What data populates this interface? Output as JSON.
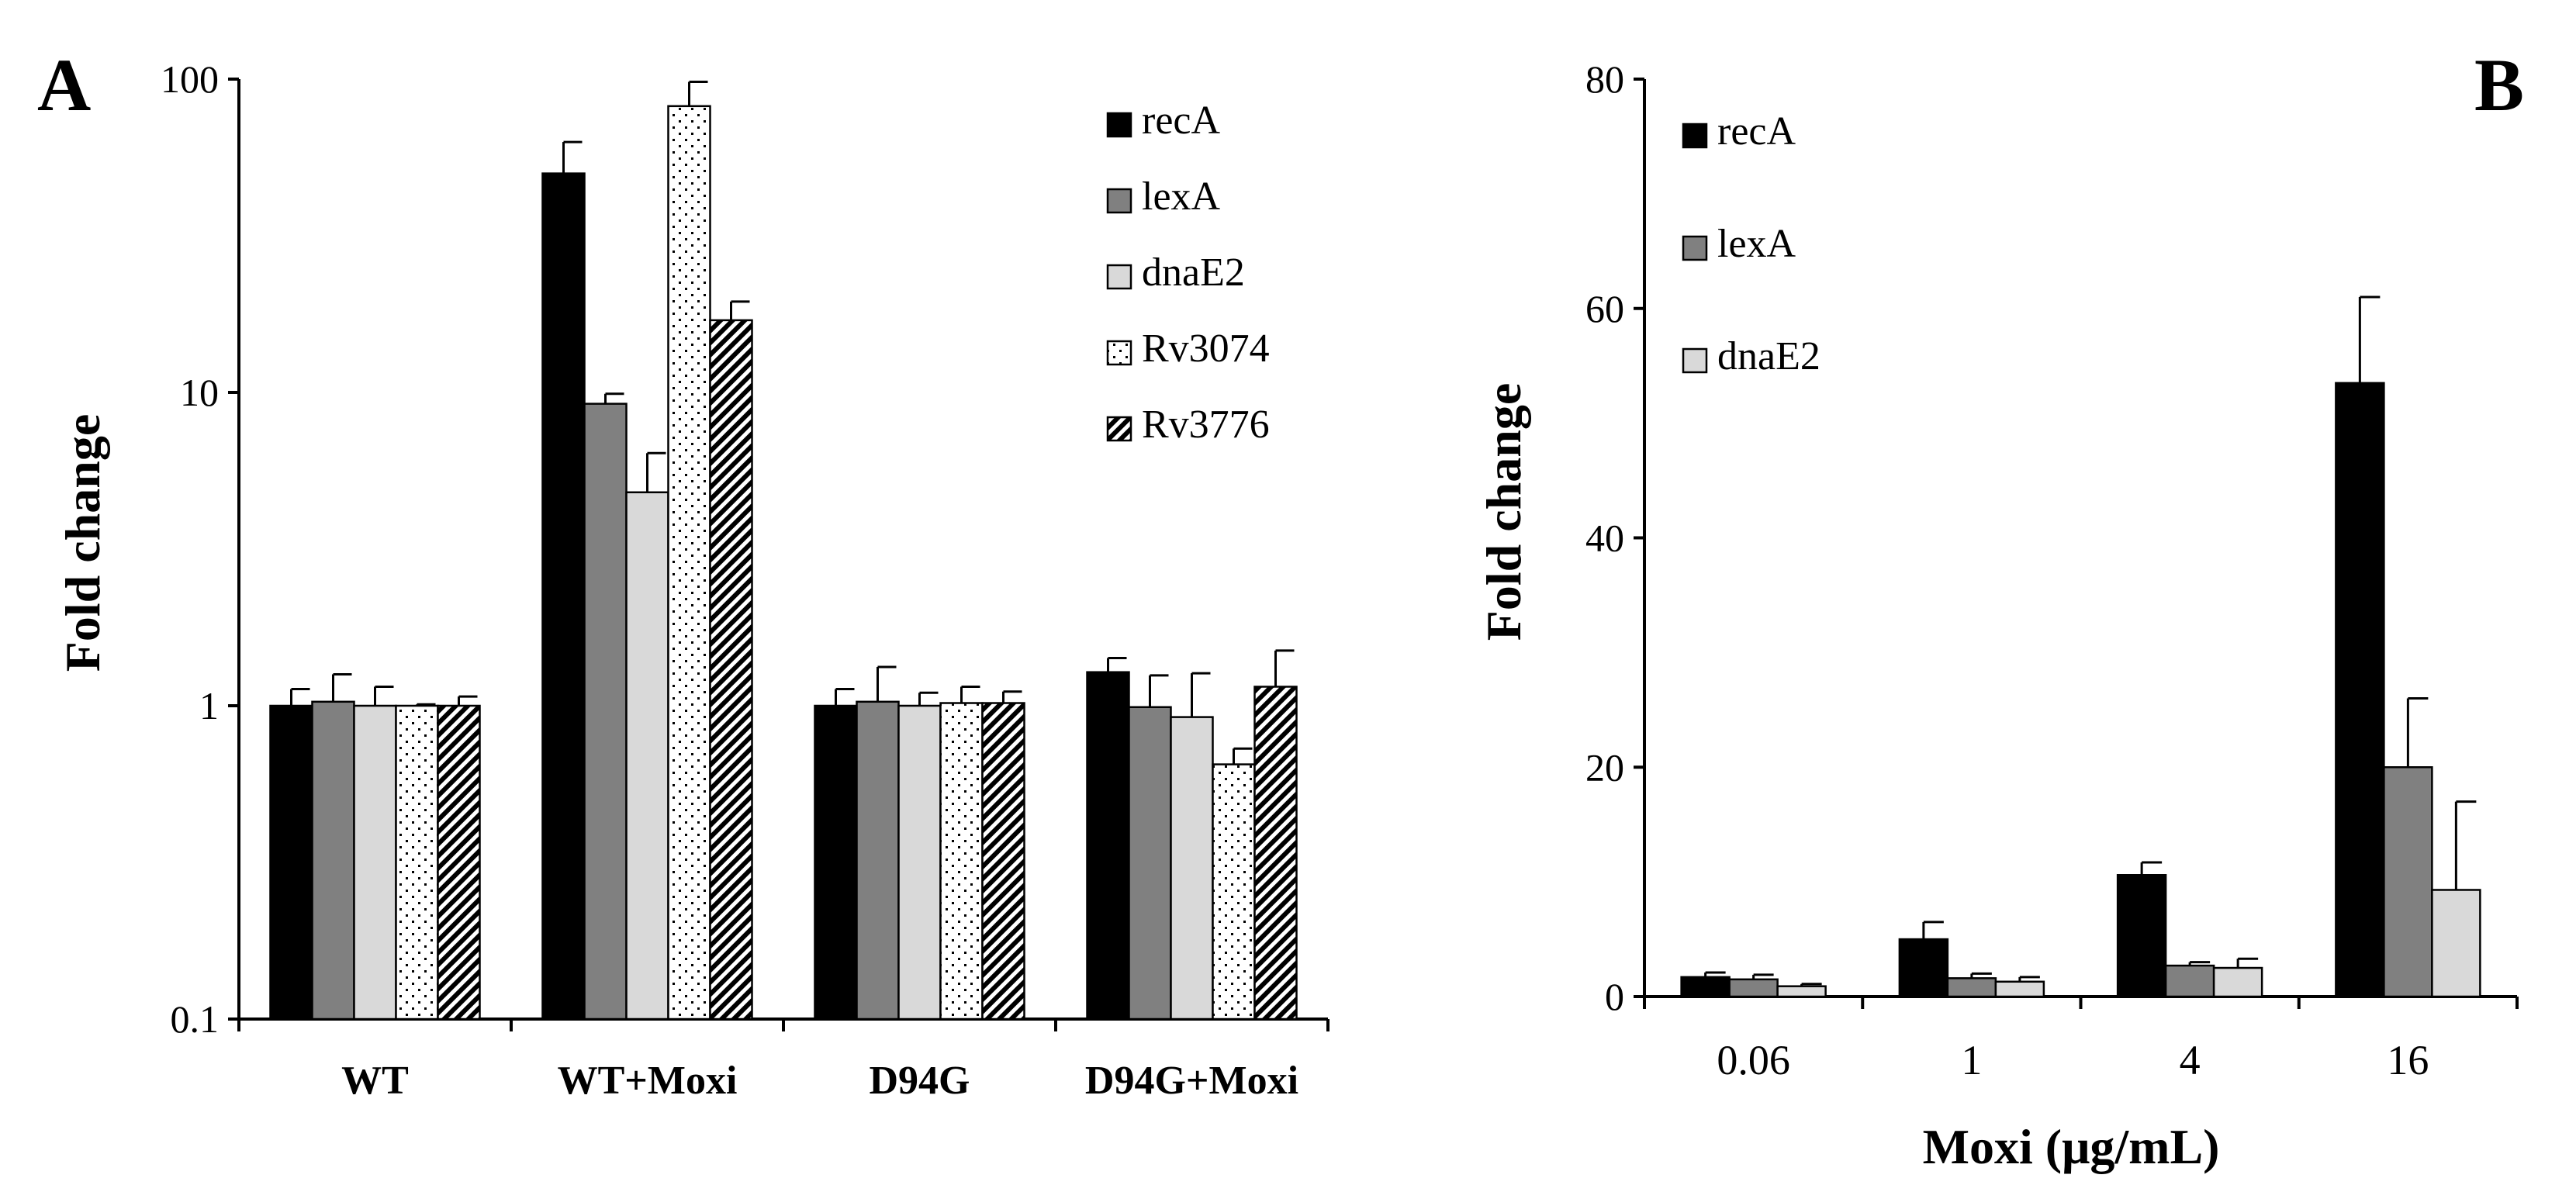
{
  "panels": [
    {
      "chart_data": {
        "type": "bar",
        "panel_label": "A",
        "scale": "log",
        "ylabel": "Fold change",
        "xlabel": "",
        "ylim": [
          0.1,
          100
        ],
        "yticks": [
          {
            "v": 0.1,
            "label": "0.1"
          },
          {
            "v": 1,
            "label": "1"
          },
          {
            "v": 10,
            "label": "10"
          },
          {
            "v": 100,
            "label": "100"
          }
        ],
        "categories": [
          "WT",
          "WT+Moxi",
          "D94G",
          "D94G+Moxi"
        ],
        "legend_position": "top-right",
        "series": [
          {
            "name": "recA",
            "pattern": "solid-black",
            "values": [
              1.0,
              50,
              1.0,
              1.28
            ],
            "errors": [
              1.13,
              63,
              1.13,
              1.42
            ]
          },
          {
            "name": "lexA",
            "pattern": "solid-darkgray",
            "values": [
              1.03,
              9.2,
              1.03,
              0.99
            ],
            "errors": [
              1.26,
              9.9,
              1.33,
              1.25
            ]
          },
          {
            "name": "dnaE2",
            "pattern": "solid-lightgray",
            "values": [
              1.0,
              4.8,
              1.0,
              0.92
            ],
            "errors": [
              1.15,
              6.4,
              1.1,
              1.27
            ]
          },
          {
            "name": "Rv3074",
            "pattern": "dotted-white",
            "values": [
              1.0,
              82,
              1.02,
              0.65
            ],
            "errors": [
              1.01,
              98,
              1.15,
              0.73
            ]
          },
          {
            "name": "Rv3776",
            "pattern": "hatched",
            "values": [
              1.0,
              17,
              1.02,
              1.15
            ],
            "errors": [
              1.07,
              19.5,
              1.11,
              1.5
            ]
          }
        ]
      }
    },
    {
      "chart_data": {
        "type": "bar",
        "panel_label": "B",
        "scale": "linear",
        "ylabel": "Fold change",
        "xlabel": "Moxi (μg/mL)",
        "ylim": [
          0,
          80
        ],
        "yticks": [
          {
            "v": 0,
            "label": "0"
          },
          {
            "v": 20,
            "label": "20"
          },
          {
            "v": 40,
            "label": "40"
          },
          {
            "v": 60,
            "label": "60"
          },
          {
            "v": 80,
            "label": "80"
          }
        ],
        "categories": [
          "0.06",
          "1",
          "4",
          "16"
        ],
        "legend_position": "top-left",
        "series": [
          {
            "name": "recA",
            "pattern": "solid-black",
            "values": [
              1.7,
              5.0,
              10.6,
              53.5
            ],
            "errors": [
              2.1,
              6.5,
              11.7,
              61.0
            ]
          },
          {
            "name": "lexA",
            "pattern": "solid-darkgray",
            "values": [
              1.5,
              1.6,
              2.7,
              20.0
            ],
            "errors": [
              1.9,
              2.0,
              3.0,
              26.0
            ]
          },
          {
            "name": "dnaE2",
            "pattern": "solid-lightgray",
            "values": [
              0.9,
              1.3,
              2.5,
              9.3
            ],
            "errors": [
              1.1,
              1.7,
              3.3,
              17.0
            ]
          }
        ]
      }
    }
  ]
}
